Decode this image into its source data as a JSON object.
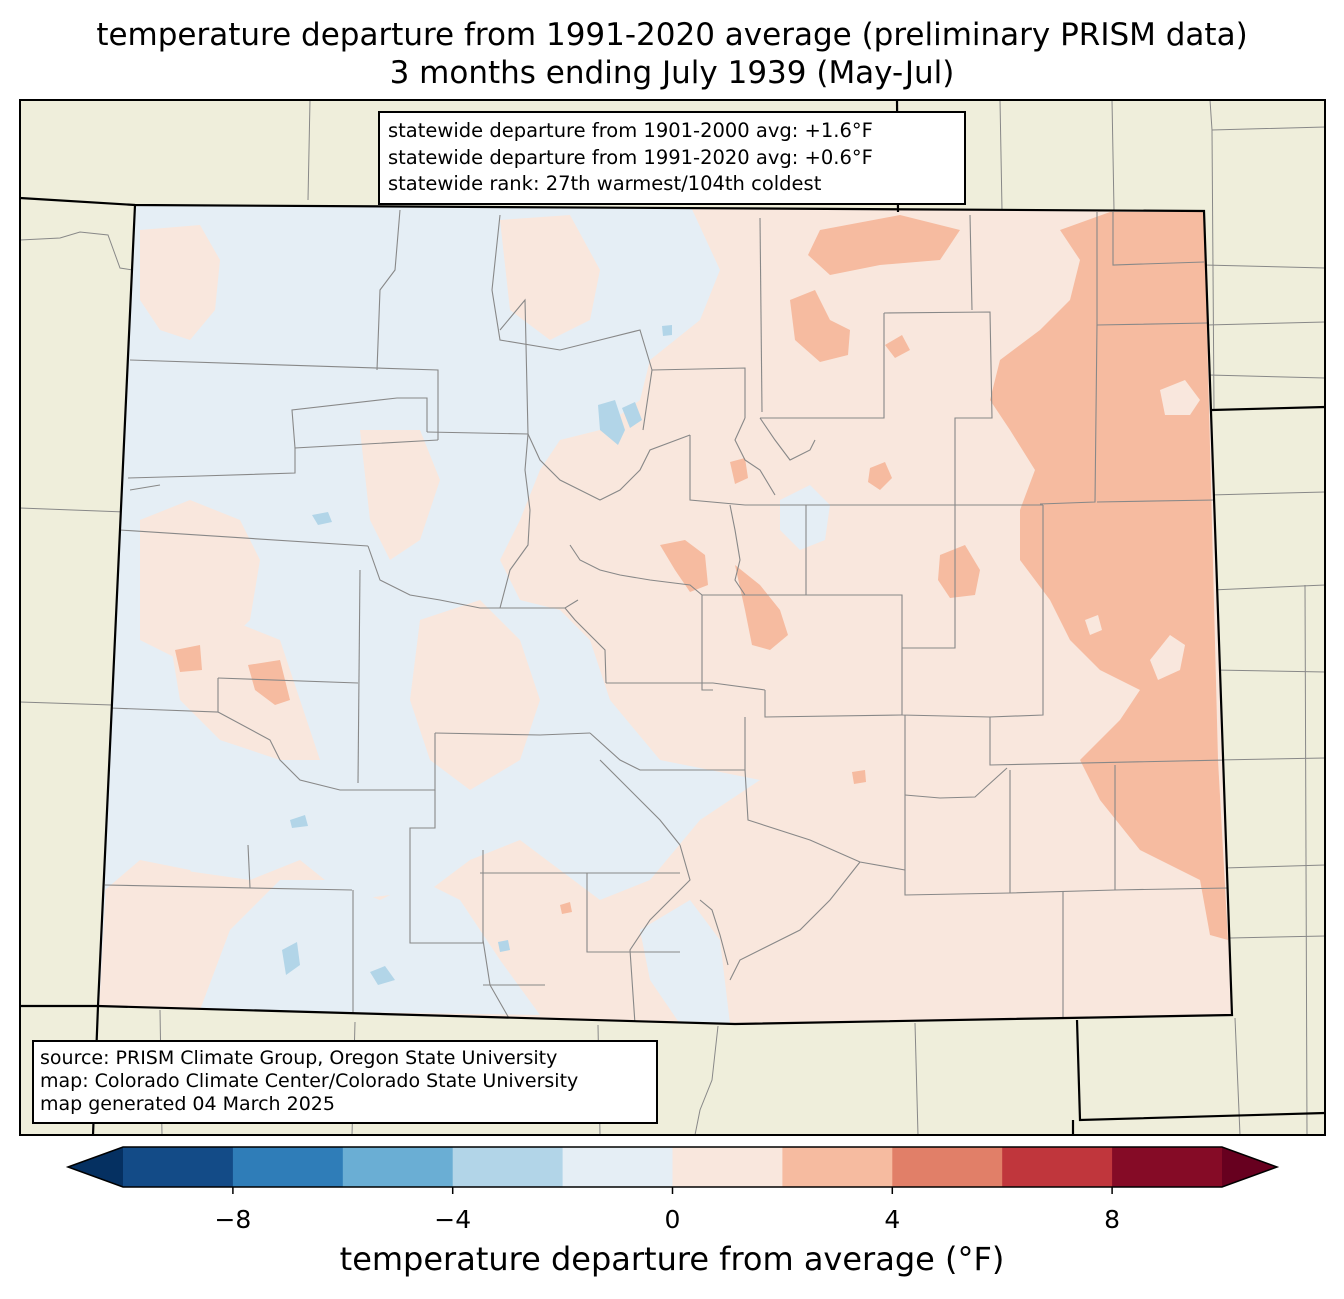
{
  "title": {
    "line1": "temperature departure from 1991-2020 average (preliminary PRISM data)",
    "line2": "3 months ending July 1939 (May-Jul)"
  },
  "stats": {
    "line1": "statewide departure from 1901-2000 avg: +1.6°F",
    "line2": "statewide departure from 1991-2020 avg: +0.6°F",
    "line3": "statewide rank: 27th warmest/104th coldest"
  },
  "source": {
    "line1": "source: PRISM Climate Group, Oregon State University",
    "line2": "map: Colorado Climate Center/Colorado State University",
    "line3": "map generated 04 March 2025"
  },
  "colorbar": {
    "label": "temperature departure from average (°F)",
    "ticks": [
      "−8",
      "−4",
      "0",
      "4",
      "8"
    ],
    "tick_values": [
      -8,
      -4,
      0,
      4,
      8
    ],
    "bins": [
      -10,
      -8,
      -6,
      -4,
      -2,
      0,
      2,
      4,
      6,
      8,
      10
    ],
    "colors": [
      "#134b87",
      "#2f7db8",
      "#6aaed4",
      "#b2d5e8",
      "#e5eef5",
      "#f9e7dd",
      "#f6bba0",
      "#e17f68",
      "#c0363c",
      "#850b26"
    ],
    "under_color": "#053061",
    "over_color": "#67001f"
  },
  "map_colors": {
    "background_states": "#efeedb",
    "cool_0_to_minus2": "#e5eef5",
    "cool_minus2_to_minus4": "#b2d5e8",
    "warm_0_to_2": "#f9e7dd",
    "warm_2_to_4": "#f6bba0",
    "county_lines": "#888888",
    "state_lines": "#000000"
  }
}
